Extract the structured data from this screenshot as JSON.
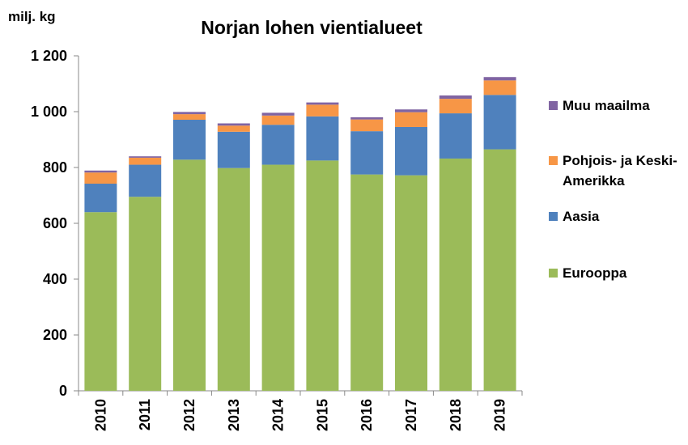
{
  "chart_data": {
    "type": "stacked_bar",
    "title": "Norjan lohen vientialueet",
    "y_label": "milj. kg",
    "categories": [
      "2010",
      "2011",
      "2012",
      "2013",
      "2014",
      "2015",
      "2016",
      "2017",
      "2018",
      "2019"
    ],
    "series": [
      {
        "name": "Eurooppa",
        "color": "#9bbb59",
        "values": [
          640,
          695,
          828,
          798,
          810,
          825,
          775,
          772,
          832,
          865
        ]
      },
      {
        "name": "Aasia",
        "color": "#4f81bd",
        "values": [
          102,
          115,
          143,
          130,
          143,
          158,
          155,
          173,
          162,
          195
        ]
      },
      {
        "name": "Pohjois- ja Keski-Amerikka",
        "color": "#f79646",
        "values": [
          40,
          25,
          20,
          22,
          33,
          42,
          42,
          53,
          52,
          52
        ]
      },
      {
        "name": "Muu maailma",
        "color": "#8064a2",
        "values": [
          7,
          5,
          8,
          8,
          10,
          8,
          8,
          10,
          12,
          12
        ]
      }
    ],
    "ylim": [
      0,
      1200
    ],
    "yticks": [
      0,
      200,
      400,
      600,
      800,
      {
        "value": 1000,
        "label": "1 000"
      },
      {
        "value": 1200,
        "label": "1 200"
      }
    ],
    "grid": false,
    "legend": "right"
  }
}
